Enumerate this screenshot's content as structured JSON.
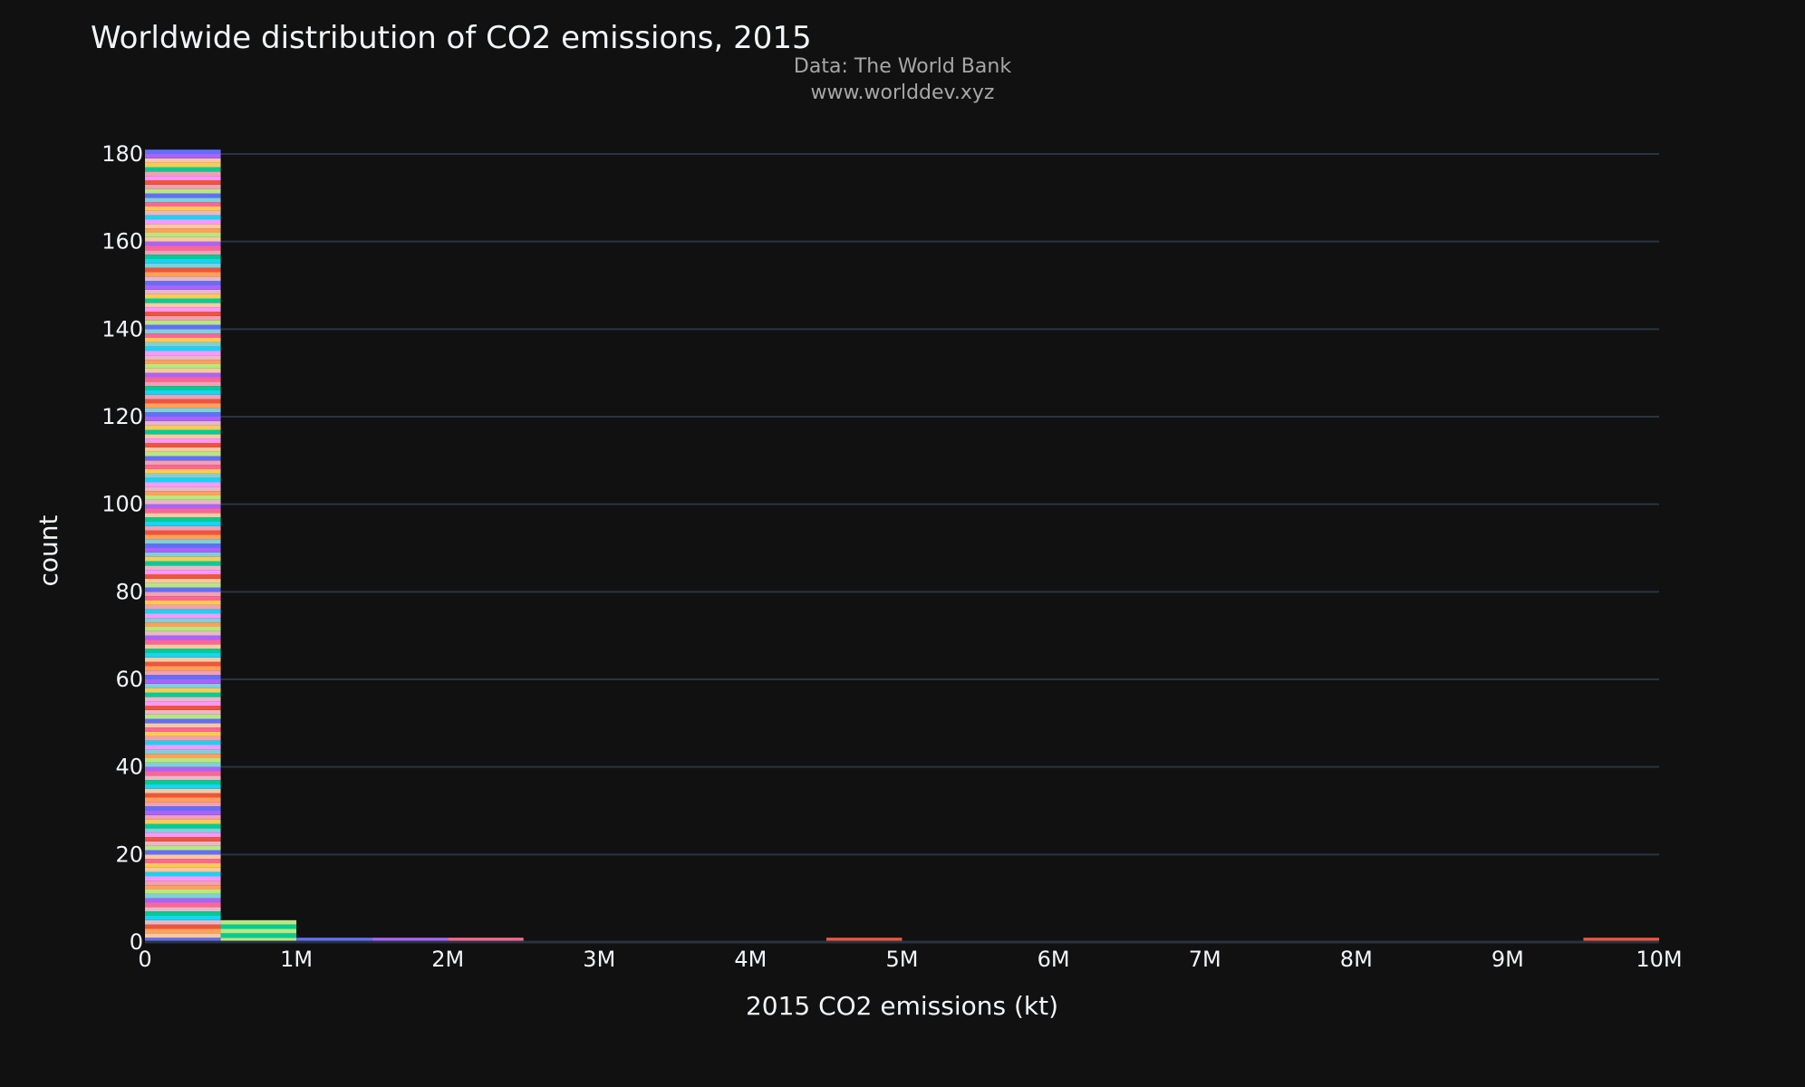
{
  "header": {
    "title": "Worldwide distribution of CO2 emissions, 2015",
    "source_line_1": "Data: The World Bank",
    "source_line_2": "www.worlddev.xyz"
  },
  "colors": {
    "background": "#111111",
    "grid": "#283442",
    "text": "#f2f5fa",
    "source_text": "#a7a7a7",
    "palette": [
      "#636efa",
      "#EF553B",
      "#00cc96",
      "#ab63fa",
      "#FFA15A",
      "#19d3f3",
      "#FF6692",
      "#B6E880",
      "#FF97FF",
      "#FECB52"
    ]
  },
  "chart_data": {
    "type": "histogram",
    "xlabel": "2015 CO2 emissions (kt)",
    "ylabel": "count",
    "xlim": [
      0,
      10000000
    ],
    "ylim": [
      0,
      180
    ],
    "x_ticks": [
      {
        "value": 0,
        "label": "0"
      },
      {
        "value": 1000000,
        "label": "1M"
      },
      {
        "value": 2000000,
        "label": "2M"
      },
      {
        "value": 3000000,
        "label": "3M"
      },
      {
        "value": 4000000,
        "label": "4M"
      },
      {
        "value": 5000000,
        "label": "5M"
      },
      {
        "value": 6000000,
        "label": "6M"
      },
      {
        "value": 7000000,
        "label": "7M"
      },
      {
        "value": 8000000,
        "label": "8M"
      },
      {
        "value": 9000000,
        "label": "9M"
      },
      {
        "value": 10000000,
        "label": "10M"
      }
    ],
    "y_ticks": [
      {
        "value": 0,
        "label": "0"
      },
      {
        "value": 20,
        "label": "20"
      },
      {
        "value": 40,
        "label": "40"
      },
      {
        "value": 60,
        "label": "60"
      },
      {
        "value": 80,
        "label": "80"
      },
      {
        "value": 100,
        "label": "100"
      },
      {
        "value": 120,
        "label": "120"
      },
      {
        "value": 140,
        "label": "140"
      },
      {
        "value": 160,
        "label": "160"
      },
      {
        "value": 180,
        "label": "180"
      }
    ],
    "bin_size": 500000,
    "grid": true,
    "stacked_by_country": true,
    "bins": [
      {
        "start": 0,
        "end": 500000,
        "count": 181
      },
      {
        "start": 500000,
        "end": 1000000,
        "count": 5
      },
      {
        "start": 1000000,
        "end": 1500000,
        "count": 1
      },
      {
        "start": 1500000,
        "end": 2000000,
        "count": 1
      },
      {
        "start": 2000000,
        "end": 2500000,
        "count": 1
      },
      {
        "start": 2500000,
        "end": 3000000,
        "count": 0
      },
      {
        "start": 3000000,
        "end": 3500000,
        "count": 0
      },
      {
        "start": 3500000,
        "end": 4000000,
        "count": 0
      },
      {
        "start": 4000000,
        "end": 4500000,
        "count": 0
      },
      {
        "start": 4500000,
        "end": 5000000,
        "count": 1
      },
      {
        "start": 5000000,
        "end": 5500000,
        "count": 0
      },
      {
        "start": 5500000,
        "end": 6000000,
        "count": 0
      },
      {
        "start": 6000000,
        "end": 6500000,
        "count": 0
      },
      {
        "start": 6500000,
        "end": 7000000,
        "count": 0
      },
      {
        "start": 7000000,
        "end": 7500000,
        "count": 0
      },
      {
        "start": 7500000,
        "end": 8000000,
        "count": 0
      },
      {
        "start": 8000000,
        "end": 8500000,
        "count": 0
      },
      {
        "start": 8500000,
        "end": 9000000,
        "count": 0
      },
      {
        "start": 9000000,
        "end": 9500000,
        "count": 0
      },
      {
        "start": 9500000,
        "end": 10000000,
        "count": 1
      }
    ]
  }
}
